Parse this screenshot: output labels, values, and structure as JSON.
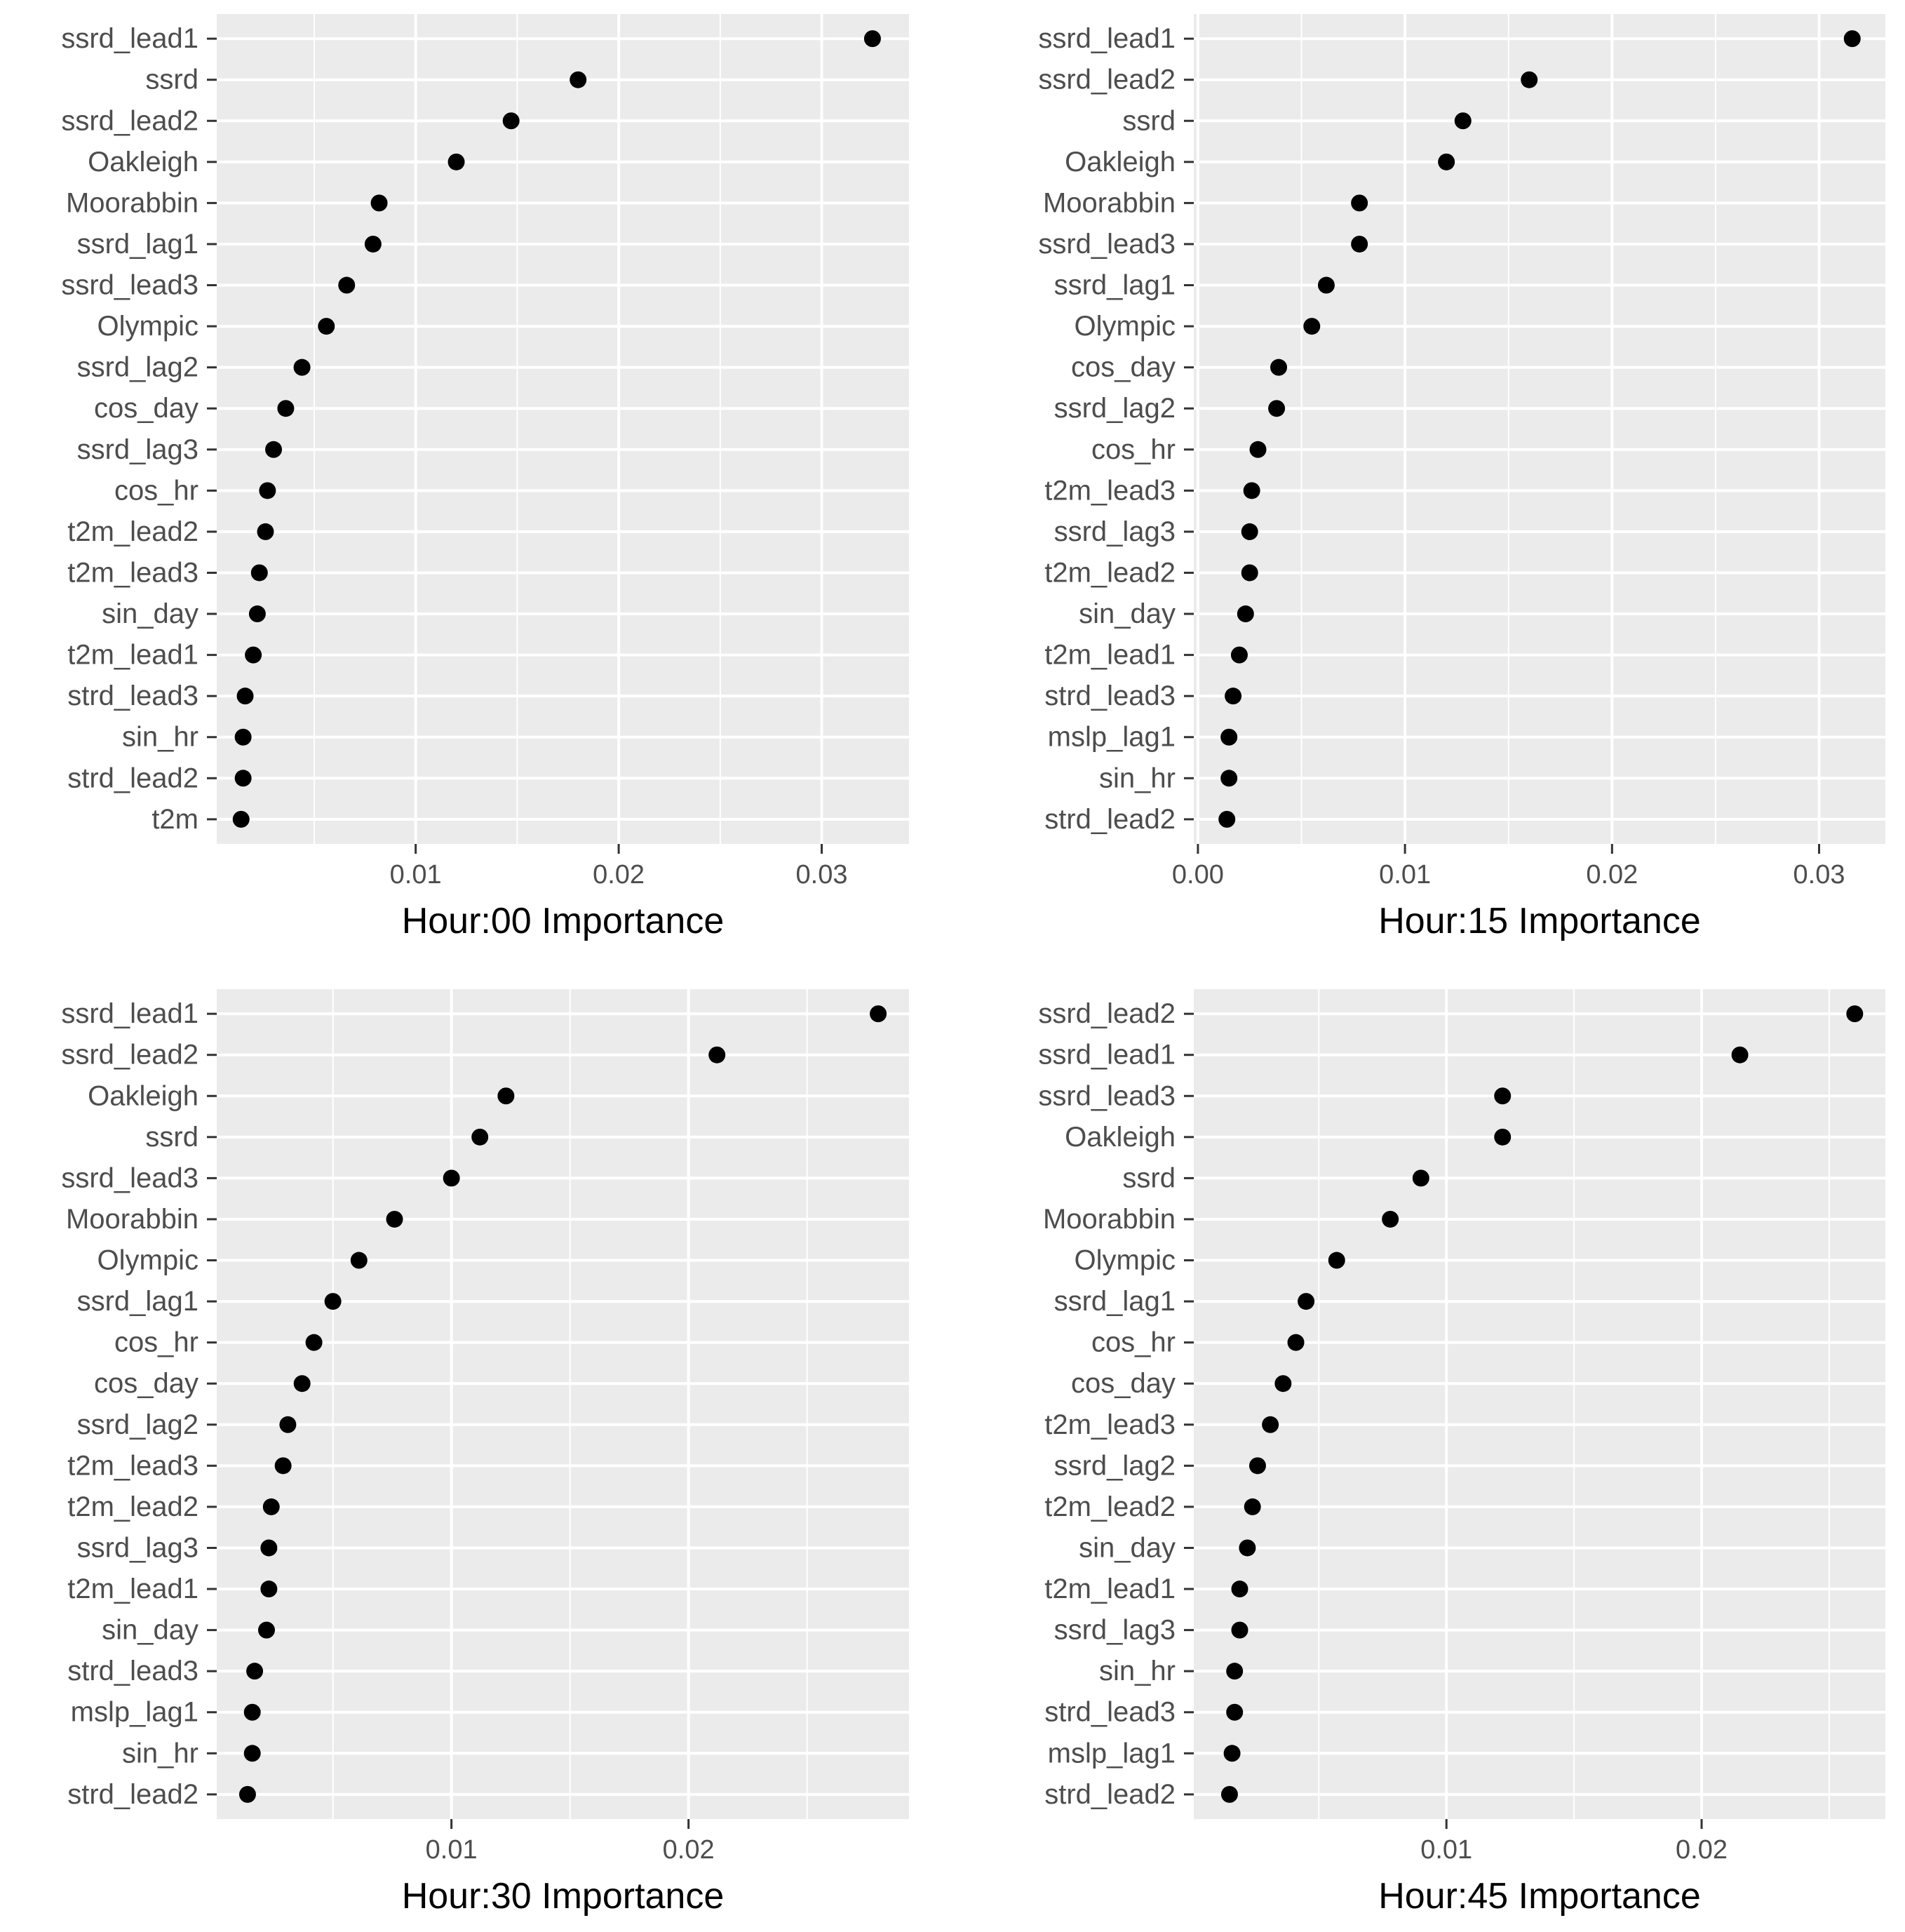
{
  "chart_data": [
    {
      "type": "scatter",
      "title": "",
      "xlabel": "Hour:00 Importance",
      "ylabel": "",
      "grid": true,
      "xlim": [
        0.0002,
        0.0343
      ],
      "xticks": [
        0.01,
        0.02,
        0.03
      ],
      "xtick_labels": [
        "0.01",
        "0.02",
        "0.03"
      ],
      "categories": [
        "ssrd_lead1",
        "ssrd",
        "ssrd_lead2",
        "Oakleigh",
        "Moorabbin",
        "ssrd_lag1",
        "ssrd_lead3",
        "Olympic",
        "ssrd_lag2",
        "cos_day",
        "ssrd_lag3",
        "cos_hr",
        "t2m_lead2",
        "t2m_lead3",
        "sin_day",
        "t2m_lead1",
        "strd_lead3",
        "sin_hr",
        "strd_lead2",
        "t2m"
      ],
      "values": [
        0.0325,
        0.018,
        0.0147,
        0.012,
        0.0082,
        0.0079,
        0.0066,
        0.0056,
        0.0044,
        0.0036,
        0.003,
        0.0027,
        0.0026,
        0.0023,
        0.0022,
        0.002,
        0.0016,
        0.0015,
        0.0015,
        0.0014
      ]
    },
    {
      "type": "scatter",
      "title": "",
      "xlabel": "Hour:15 Importance",
      "ylabel": "",
      "grid": true,
      "xlim": [
        -0.0002,
        0.0332
      ],
      "xticks": [
        0.0,
        0.01,
        0.02,
        0.03
      ],
      "xtick_labels": [
        "0.00",
        "0.01",
        "0.02",
        "0.03"
      ],
      "categories": [
        "ssrd_lead1",
        "ssrd_lead2",
        "ssrd",
        "Oakleigh",
        "Moorabbin",
        "ssrd_lead3",
        "ssrd_lag1",
        "Olympic",
        "cos_day",
        "ssrd_lag2",
        "cos_hr",
        "t2m_lead3",
        "ssrd_lag3",
        "t2m_lead2",
        "sin_day",
        "t2m_lead1",
        "strd_lead3",
        "mslp_lag1",
        "sin_hr",
        "strd_lead2"
      ],
      "values": [
        0.0316,
        0.016,
        0.0128,
        0.012,
        0.0078,
        0.0078,
        0.0062,
        0.0055,
        0.0039,
        0.0038,
        0.0029,
        0.0026,
        0.0025,
        0.0025,
        0.0023,
        0.002,
        0.0017,
        0.0015,
        0.0015,
        0.0014
      ]
    },
    {
      "type": "scatter",
      "title": "",
      "xlabel": "Hour:30 Importance",
      "ylabel": "",
      "grid": true,
      "xlim": [
        0.0001,
        0.0293
      ],
      "xticks": [
        0.01,
        0.02
      ],
      "xtick_labels": [
        "0.01",
        "0.02"
      ],
      "categories": [
        "ssrd_lead1",
        "ssrd_lead2",
        "Oakleigh",
        "ssrd",
        "ssrd_lead3",
        "Moorabbin",
        "Olympic",
        "ssrd_lag1",
        "cos_hr",
        "cos_day",
        "ssrd_lag2",
        "t2m_lead3",
        "t2m_lead2",
        "ssrd_lag3",
        "t2m_lead1",
        "sin_day",
        "strd_lead3",
        "mslp_lag1",
        "sin_hr",
        "strd_lead2"
      ],
      "values": [
        0.028,
        0.0212,
        0.0123,
        0.0112,
        0.01,
        0.0076,
        0.0061,
        0.005,
        0.0042,
        0.0037,
        0.0031,
        0.0029,
        0.0024,
        0.0023,
        0.0023,
        0.0022,
        0.0017,
        0.0016,
        0.0016,
        0.0014
      ]
    },
    {
      "type": "scatter",
      "title": "",
      "xlabel": "Hour:45 Importance",
      "ylabel": "",
      "grid": true,
      "xlim": [
        0.0001,
        0.0272
      ],
      "xticks": [
        0.01,
        0.02
      ],
      "xtick_labels": [
        "0.01",
        "0.02"
      ],
      "categories": [
        "ssrd_lead2",
        "ssrd_lead1",
        "ssrd_lead3",
        "Oakleigh",
        "ssrd",
        "Moorabbin",
        "Olympic",
        "ssrd_lag1",
        "cos_hr",
        "cos_day",
        "t2m_lead3",
        "ssrd_lag2",
        "t2m_lead2",
        "sin_day",
        "t2m_lead1",
        "ssrd_lag3",
        "sin_hr",
        "strd_lead3",
        "mslp_lag1",
        "strd_lead2"
      ],
      "values": [
        0.026,
        0.0215,
        0.0122,
        0.0122,
        0.009,
        0.0078,
        0.0057,
        0.0045,
        0.0041,
        0.0036,
        0.0031,
        0.0026,
        0.0024,
        0.0022,
        0.0019,
        0.0019,
        0.0017,
        0.0017,
        0.0016,
        0.0015
      ]
    }
  ]
}
